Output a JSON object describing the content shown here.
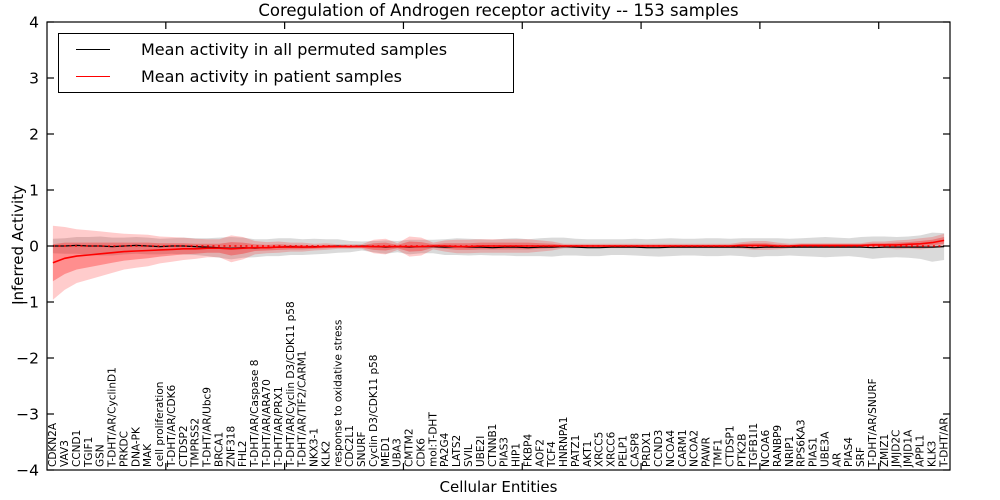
{
  "chart_data": {
    "type": "line",
    "title": "Coregulation of Androgen receptor activity -- 153 samples",
    "xlabel": "Cellular Entities",
    "ylabel": "Inferred Activity",
    "ylim": [
      -4,
      4
    ],
    "yticks": [
      "4",
      "3",
      "2",
      "1",
      "0",
      "−1",
      "−2",
      "−3",
      "−4"
    ],
    "ytick_values": [
      4,
      3,
      2,
      1,
      0,
      -1,
      -2,
      -3,
      -4
    ],
    "xtick_positions": [
      10,
      20,
      30,
      40,
      50,
      60,
      70
    ],
    "grid": false,
    "legend_position": "upper left",
    "reference_line": {
      "y": 0,
      "style": "dashed",
      "color": "#ff0000"
    },
    "categories": [
      "CDKN2A",
      "VAV3",
      "CCND1",
      "TGIF1",
      "GSN",
      "T-DHT/AR/CyclinD1",
      "PRKDC",
      "DNA-PK",
      "MAK",
      "cell proliferation",
      "T-DHT/AR/CDK6",
      "CTDSP2",
      "TMPRSS2",
      "T-DHT/AR/Ubc9",
      "BRCA1",
      "ZNF318",
      "FHL2",
      "T-DHT/AR/Caspase 8",
      "T-DHT/AR/ARA70",
      "T-DHT/AR/PRX1",
      "T-DHT/AR/Cyclin D3/CDK11 p58",
      "T-DHT/AR/TIF2/CARM1",
      "NKX3-1",
      "KLK2",
      "response to oxidative stress",
      "CDC2L1",
      "SNURF",
      "Cyclin D3/CDK11 p58",
      "MED1",
      "UBA3",
      "CMTM2",
      "CDK6",
      "mol:T-DHT",
      "PA2G4",
      "LATS2",
      "SVIL",
      "UBE2I",
      "CTNNB1",
      "PIAS3",
      "HIP1",
      "FKBP4",
      "AOF2",
      "TCF4",
      "HNRNPA1",
      "PATZ1",
      "AKT1",
      "XRCC5",
      "XRCC6",
      "PELP1",
      "CASP8",
      "PRDX1",
      "CCND3",
      "NCOA4",
      "CARM1",
      "NCOA2",
      "PAWR",
      "TMF1",
      "CTDSP1",
      "PTK2B",
      "TGFB1I1",
      "NCOA6",
      "RANBP9",
      "NRIP1",
      "RPS6KA3",
      "PIAS1",
      "UBE3A",
      "AR",
      "PIAS4",
      "SRF",
      "T-DHT/AR/SNURF",
      "ZMIZ1",
      "JMJD2C",
      "JMJD1A",
      "APPL1",
      "KLK3",
      "T-DHT/AR"
    ],
    "series": [
      {
        "name": "Mean activity in all permuted samples",
        "color": "#000000",
        "band_color": "#bbbbbb",
        "values": [
          0.0,
          0.0,
          0.01,
          0.0,
          0.0,
          -0.01,
          0.0,
          0.01,
          0.0,
          -0.01,
          0.0,
          0.0,
          -0.01,
          -0.02,
          -0.03,
          -0.04,
          -0.03,
          -0.04,
          -0.03,
          -0.02,
          -0.01,
          -0.02,
          -0.01,
          -0.01,
          0.0,
          -0.01,
          0.0,
          -0.01,
          -0.02,
          -0.01,
          -0.02,
          -0.01,
          -0.01,
          -0.02,
          -0.01,
          -0.02,
          -0.02,
          -0.03,
          -0.02,
          -0.02,
          -0.03,
          -0.02,
          -0.02,
          -0.01,
          -0.02,
          -0.03,
          -0.03,
          -0.02,
          -0.02,
          -0.02,
          -0.03,
          -0.03,
          -0.02,
          -0.02,
          -0.02,
          -0.02,
          -0.02,
          -0.02,
          -0.02,
          -0.03,
          -0.02,
          -0.02,
          -0.02,
          -0.02,
          -0.02,
          -0.02,
          -0.02,
          -0.02,
          -0.02,
          -0.03,
          -0.02,
          -0.02,
          -0.02,
          -0.02,
          -0.02,
          -0.01
        ],
        "band_std": [
          0.13,
          0.14,
          0.15,
          0.16,
          0.17,
          0.16,
          0.15,
          0.15,
          0.15,
          0.14,
          0.14,
          0.15,
          0.15,
          0.16,
          0.18,
          0.2,
          0.18,
          0.16,
          0.15,
          0.16,
          0.15,
          0.14,
          0.14,
          0.13,
          0.12,
          0.1,
          0.08,
          0.1,
          0.12,
          0.1,
          0.13,
          0.12,
          0.12,
          0.14,
          0.15,
          0.15,
          0.14,
          0.14,
          0.15,
          0.16,
          0.15,
          0.16,
          0.17,
          0.16,
          0.15,
          0.15,
          0.15,
          0.14,
          0.14,
          0.15,
          0.15,
          0.16,
          0.16,
          0.15,
          0.15,
          0.16,
          0.16,
          0.15,
          0.16,
          0.17,
          0.16,
          0.16,
          0.15,
          0.16,
          0.17,
          0.18,
          0.17,
          0.16,
          0.18,
          0.2,
          0.19,
          0.18,
          0.19,
          0.21,
          0.26,
          0.24
        ]
      },
      {
        "name": "Mean activity in patient samples",
        "color": "#ff0000",
        "band_color": "#ff0000",
        "values": [
          -0.3,
          -0.22,
          -0.18,
          -0.16,
          -0.14,
          -0.12,
          -0.1,
          -0.09,
          -0.08,
          -0.07,
          -0.06,
          -0.05,
          -0.05,
          -0.04,
          -0.04,
          -0.05,
          -0.04,
          -0.03,
          -0.03,
          -0.02,
          -0.02,
          -0.02,
          -0.02,
          -0.01,
          -0.01,
          -0.01,
          -0.01,
          -0.01,
          -0.01,
          -0.01,
          -0.01,
          -0.01,
          0.0,
          0.0,
          -0.01,
          -0.01,
          0.0,
          0.0,
          0.0,
          0.0,
          0.0,
          0.0,
          0.0,
          0.0,
          0.0,
          0.0,
          0.0,
          0.0,
          0.0,
          0.0,
          0.0,
          0.0,
          0.0,
          0.0,
          0.0,
          0.0,
          0.0,
          0.0,
          0.01,
          0.01,
          0.01,
          0.0,
          0.0,
          0.01,
          0.01,
          0.01,
          0.01,
          0.01,
          0.01,
          0.02,
          0.02,
          0.02,
          0.03,
          0.04,
          0.06,
          0.1
        ],
        "band_std": [
          0.33,
          0.28,
          0.24,
          0.22,
          0.2,
          0.18,
          0.16,
          0.15,
          0.14,
          0.12,
          0.11,
          0.1,
          0.09,
          0.08,
          0.08,
          0.12,
          0.1,
          0.06,
          0.05,
          0.05,
          0.04,
          0.04,
          0.03,
          0.03,
          0.02,
          0.02,
          0.02,
          0.06,
          0.07,
          0.03,
          0.09,
          0.08,
          0.03,
          0.05,
          0.06,
          0.06,
          0.06,
          0.06,
          0.06,
          0.06,
          0.06,
          0.05,
          0.04,
          0.02,
          0.02,
          0.02,
          0.02,
          0.02,
          0.02,
          0.02,
          0.02,
          0.02,
          0.02,
          0.02,
          0.02,
          0.02,
          0.02,
          0.02,
          0.03,
          0.04,
          0.04,
          0.03,
          0.02,
          0.02,
          0.02,
          0.02,
          0.02,
          0.02,
          0.02,
          0.03,
          0.03,
          0.04,
          0.04,
          0.05,
          0.05,
          0.06
        ]
      }
    ]
  }
}
